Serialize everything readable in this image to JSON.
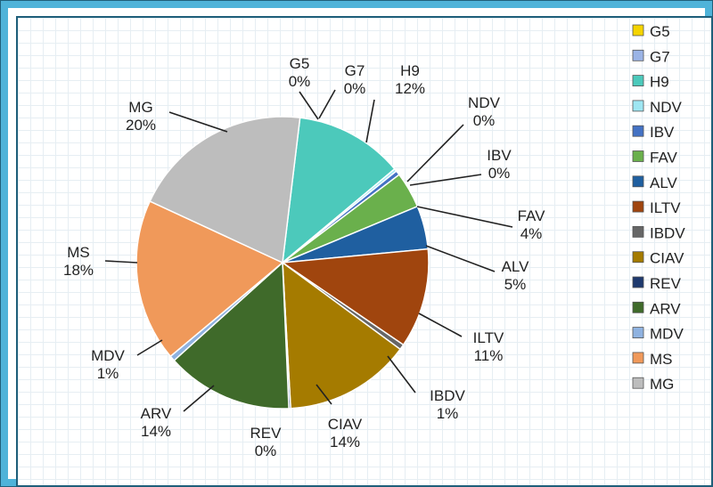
{
  "chart_data": {
    "type": "pie",
    "title": "",
    "legend_position": "right",
    "slices": [
      {
        "name": "G5",
        "label": "G5",
        "pct": "0%",
        "value": 0.0,
        "color": "#f5d400"
      },
      {
        "name": "G7",
        "label": "G7",
        "pct": "0%",
        "value": 0.0,
        "color": "#9bb4e6"
      },
      {
        "name": "H9",
        "label": "H9",
        "pct": "12%",
        "value": 12.0,
        "color": "#4cc9bb"
      },
      {
        "name": "NDV",
        "label": "NDV",
        "pct": "0%",
        "value": 0.3,
        "color": "#9ee6f2"
      },
      {
        "name": "IBV",
        "label": "IBV",
        "pct": "0%",
        "value": 0.5,
        "color": "#4472c4"
      },
      {
        "name": "FAV",
        "label": "FAV",
        "pct": "4%",
        "value": 4.0,
        "color": "#6ab04c"
      },
      {
        "name": "ALV",
        "label": "ALV",
        "pct": "5%",
        "value": 4.8,
        "color": "#1f5fa0"
      },
      {
        "name": "ILTV",
        "label": "ILTV",
        "pct": "11%",
        "value": 11.0,
        "color": "#a0450e"
      },
      {
        "name": "IBDV",
        "label": "IBDV",
        "pct": "1%",
        "value": 0.6,
        "color": "#666666"
      },
      {
        "name": "CIAV",
        "label": "CIAV",
        "pct": "14%",
        "value": 14.0,
        "color": "#a57b00"
      },
      {
        "name": "REV",
        "label": "REV",
        "pct": "0%",
        "value": 0.2,
        "color": "#1f3a6e"
      },
      {
        "name": "ARV",
        "label": "ARV",
        "pct": "14%",
        "value": 14.0,
        "color": "#3f6a2a"
      },
      {
        "name": "MDV",
        "label": "MDV",
        "pct": "1%",
        "value": 0.6,
        "color": "#8fb2e0"
      },
      {
        "name": "MS",
        "label": "MS",
        "pct": "18%",
        "value": 18.0,
        "color": "#f0995a"
      },
      {
        "name": "MG",
        "label": "MG",
        "pct": "20%",
        "value": 20.0,
        "color": "#bdbdbd"
      }
    ]
  }
}
